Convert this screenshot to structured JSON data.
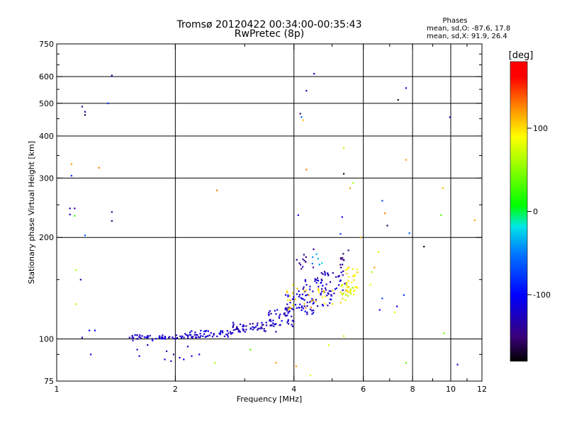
{
  "chart_data": {
    "type": "scatter",
    "title": "Tromsø 20120422 00:34:00-00:35:43",
    "subtitle": "RwPretec (8p)",
    "xlabel": "Frequency [MHz]",
    "ylabel": "Stationary phase Virtual Height [km]",
    "x_scale": "log",
    "y_scale": "log",
    "xlim": [
      1,
      12
    ],
    "ylim": [
      75,
      750
    ],
    "x_ticks": [
      1,
      2,
      4,
      6,
      8,
      10,
      12
    ],
    "x_tick_labels": [
      "1",
      "2",
      "4",
      "6",
      "8",
      "10",
      "12"
    ],
    "y_ticks": [
      75,
      100,
      200,
      300,
      400,
      500,
      600,
      750
    ],
    "y_tick_labels": [
      "75",
      "100",
      "200",
      "300",
      "400",
      "500",
      "600",
      "750"
    ],
    "grid": true,
    "annotation": {
      "title": "Phases",
      "line1": "mean, sd,O: -87.6, 17.8",
      "line2": "mean, sd,X:  91.9, 26.4"
    },
    "colorbar": {
      "label": "[deg]",
      "range": [
        -180,
        180
      ],
      "ticks": [
        100,
        0,
        -100
      ],
      "tick_labels": [
        "100",
        "0",
        "-100"
      ]
    },
    "points": [
      [
        1.08,
        244,
        -130
      ],
      [
        1.08,
        234,
        -120
      ],
      [
        1.11,
        244,
        -140
      ],
      [
        1.11,
        232,
        20
      ],
      [
        1.09,
        330,
        120
      ],
      [
        1.09,
        305,
        -80
      ],
      [
        1.12,
        160,
        60
      ],
      [
        1.12,
        127,
        60
      ],
      [
        1.15,
        150,
        -130
      ],
      [
        1.16,
        101,
        -120
      ],
      [
        1.18,
        203,
        -60
      ],
      [
        1.21,
        106,
        -100
      ],
      [
        1.22,
        90,
        -110
      ],
      [
        1.25,
        106,
        -100
      ],
      [
        1.28,
        322,
        130
      ],
      [
        1.18,
        472,
        -130
      ],
      [
        1.18,
        462,
        -170
      ],
      [
        1.35,
        500,
        -80
      ],
      [
        1.38,
        605,
        -130
      ],
      [
        1.38,
        238,
        -150
      ],
      [
        1.38,
        224,
        -150
      ],
      [
        1.16,
        489,
        -140
      ],
      [
        2.52,
        85,
        60
      ],
      [
        2.55,
        276,
        130
      ],
      [
        3.6,
        85,
        120
      ],
      [
        3.1,
        93,
        30
      ],
      [
        4.15,
        466,
        -150
      ],
      [
        4.18,
        455,
        -60
      ],
      [
        4.22,
        446,
        110
      ],
      [
        4.3,
        545,
        -130
      ],
      [
        4.5,
        612,
        -110
      ],
      [
        4.3,
        318,
        130
      ],
      [
        4.1,
        233,
        -110
      ],
      [
        5.35,
        368,
        60
      ],
      [
        5.35,
        309,
        -170
      ],
      [
        5.65,
        290,
        60
      ],
      [
        5.55,
        280,
        120
      ],
      [
        5.3,
        230,
        -110
      ],
      [
        5.25,
        205,
        -80
      ],
      [
        5.9,
        200,
        120
      ],
      [
        6.7,
        257,
        -70
      ],
      [
        6.8,
        236,
        130
      ],
      [
        6.9,
        217,
        -160
      ],
      [
        7.35,
        512,
        -170
      ],
      [
        7.7,
        555,
        -100
      ],
      [
        7.7,
        340,
        120
      ],
      [
        7.85,
        206,
        -60
      ],
      [
        8.55,
        188,
        -170
      ],
      [
        7.6,
        135,
        -80
      ],
      [
        7.3,
        125,
        -110
      ],
      [
        7.2,
        120,
        80
      ],
      [
        6.7,
        132,
        -70
      ],
      [
        6.6,
        122,
        -110
      ],
      [
        6.55,
        181,
        80
      ],
      [
        6.4,
        163,
        120
      ],
      [
        6.25,
        145,
        80
      ],
      [
        6.3,
        158,
        60
      ],
      [
        9.45,
        233,
        30
      ],
      [
        9.55,
        280,
        110
      ],
      [
        9.95,
        455,
        -120
      ],
      [
        10.4,
        84,
        -120
      ],
      [
        11.5,
        225,
        120
      ],
      [
        9.6,
        104,
        40
      ],
      [
        7.7,
        85,
        40
      ],
      [
        5.35,
        102,
        60
      ],
      [
        4.9,
        96,
        80
      ],
      [
        4.4,
        78,
        80
      ],
      [
        4.05,
        83,
        120
      ],
      [
        1.53,
        101,
        -130
      ],
      [
        1.56,
        99,
        -120
      ],
      [
        1.6,
        93,
        -130
      ],
      [
        1.62,
        89,
        -110
      ],
      [
        1.7,
        96,
        -130
      ],
      [
        1.75,
        99,
        -120
      ],
      [
        1.82,
        101,
        -110
      ],
      [
        1.88,
        87,
        -120
      ],
      [
        1.9,
        92,
        -130
      ],
      [
        1.95,
        86,
        -130
      ],
      [
        1.98,
        90,
        -140
      ],
      [
        2.05,
        88,
        -120
      ],
      [
        2.1,
        87,
        -110
      ],
      [
        2.15,
        95,
        -130
      ],
      [
        2.2,
        89,
        -120
      ],
      [
        2.3,
        90,
        -110
      ]
    ],
    "bands": [
      {
        "x0": 1.55,
        "x1": 2.3,
        "y0": 100,
        "y1": 103,
        "phase": -120,
        "n": 55
      },
      {
        "x0": 2.1,
        "x1": 2.8,
        "y0": 101,
        "y1": 106,
        "phase": -115,
        "n": 50
      },
      {
        "x0": 2.8,
        "x1": 3.6,
        "y0": 105,
        "y1": 112,
        "phase": -125,
        "n": 55
      },
      {
        "x0": 3.4,
        "x1": 4.0,
        "y0": 109,
        "y1": 124,
        "phase": -120,
        "n": 45
      },
      {
        "x0": 3.8,
        "x1": 4.5,
        "y0": 118,
        "y1": 140,
        "phase": -115,
        "n": 45
      },
      {
        "x0": 4.2,
        "x1": 5.0,
        "y0": 125,
        "y1": 152,
        "phase": -120,
        "n": 40
      },
      {
        "x0": 4.6,
        "x1": 5.4,
        "y0": 135,
        "y1": 160,
        "phase": -125,
        "n": 35
      },
      {
        "x0": 3.8,
        "x1": 4.8,
        "y0": 120,
        "y1": 140,
        "phase": 110,
        "n": 18
      },
      {
        "x0": 4.6,
        "x1": 5.5,
        "y0": 125,
        "y1": 145,
        "phase": 100,
        "n": 18
      },
      {
        "x0": 5.4,
        "x1": 5.8,
        "y0": 138,
        "y1": 165,
        "phase": 100,
        "n": 30
      },
      {
        "x0": 5.3,
        "x1": 5.7,
        "y0": 130,
        "y1": 145,
        "phase": 70,
        "n": 14
      },
      {
        "x0": 4.0,
        "x1": 4.6,
        "y0": 160,
        "y1": 185,
        "phase": -140,
        "n": 12
      },
      {
        "x0": 4.4,
        "x1": 4.8,
        "y0": 165,
        "y1": 180,
        "phase": -40,
        "n": 6
      },
      {
        "x0": 5.1,
        "x1": 5.5,
        "y0": 160,
        "y1": 185,
        "phase": -140,
        "n": 10
      },
      {
        "x0": 3.8,
        "x1": 4.2,
        "y0": 128,
        "y1": 145,
        "phase": 100,
        "n": 8
      }
    ]
  }
}
